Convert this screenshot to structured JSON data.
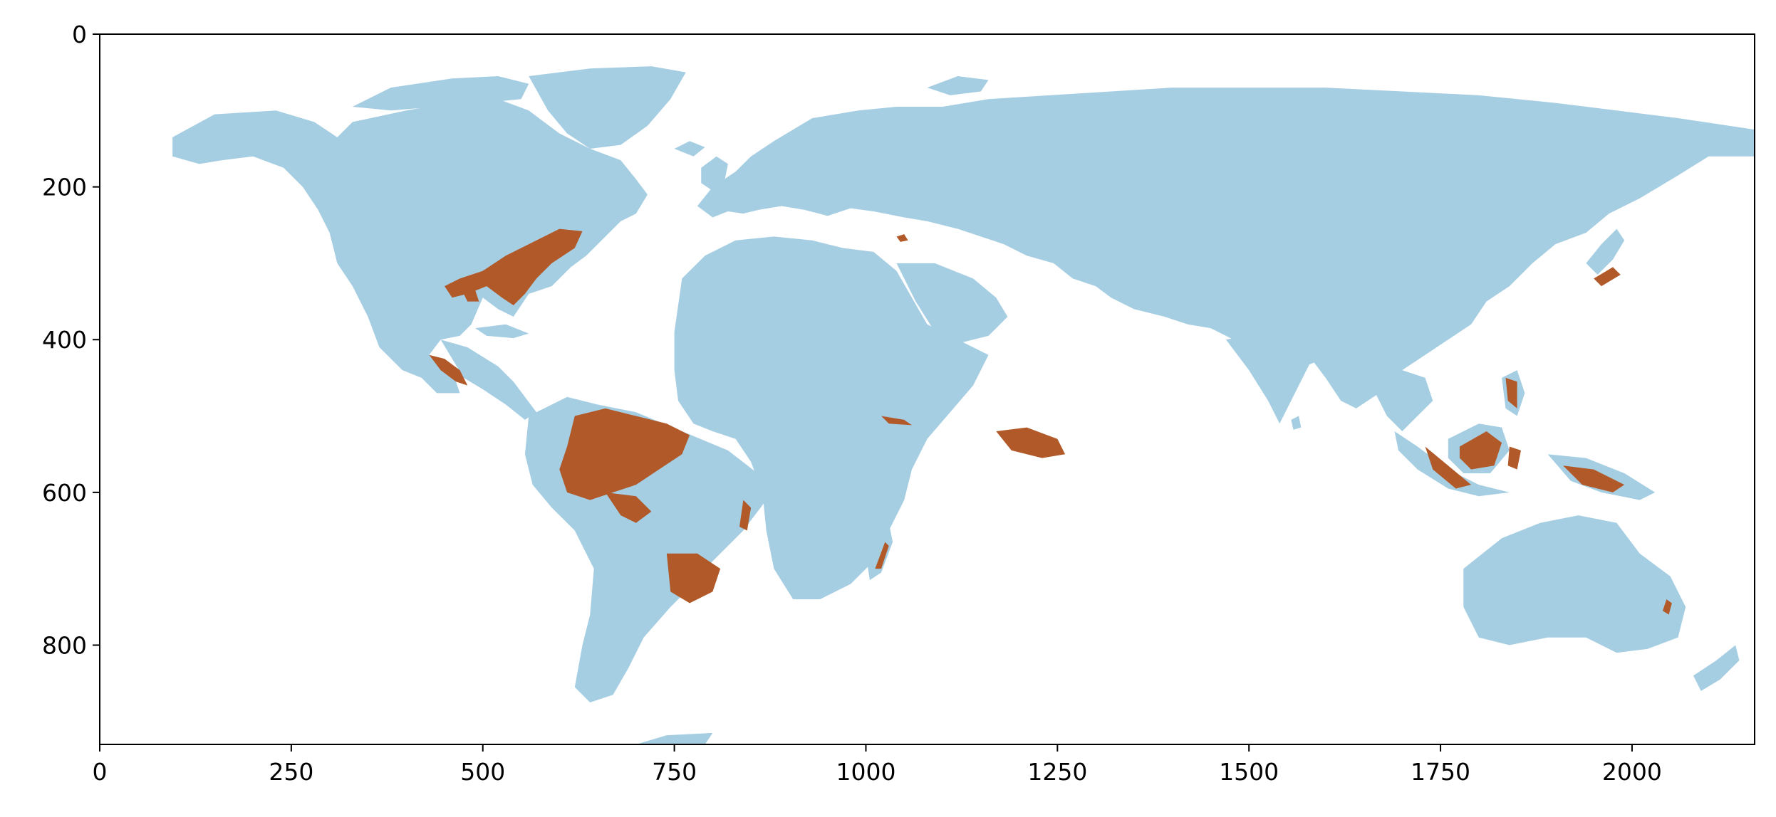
{
  "colors": {
    "land": "#a6cee3",
    "highlight": "#b15928",
    "ocean": "#ffffff",
    "axis": "#000000"
  },
  "chart_data": {
    "type": "heatmap",
    "title": "",
    "xlabel": "",
    "ylabel": "",
    "xlim": [
      0,
      2160
    ],
    "ylim": [
      930,
      0
    ],
    "y_inverted": true,
    "grid": false,
    "legend": "none",
    "x_ticks": [
      0,
      250,
      500,
      750,
      1000,
      1250,
      1500,
      1750,
      2000
    ],
    "y_ticks": [
      0,
      200,
      400,
      600,
      800
    ],
    "x_tick_labels": [
      "0",
      "250",
      "500",
      "750",
      "1000",
      "1250",
      "1500",
      "1750",
      "2000"
    ],
    "y_tick_labels": [
      "0",
      "200",
      "400",
      "600",
      "800"
    ],
    "classes": [
      "land",
      "highlighted region"
    ]
  }
}
